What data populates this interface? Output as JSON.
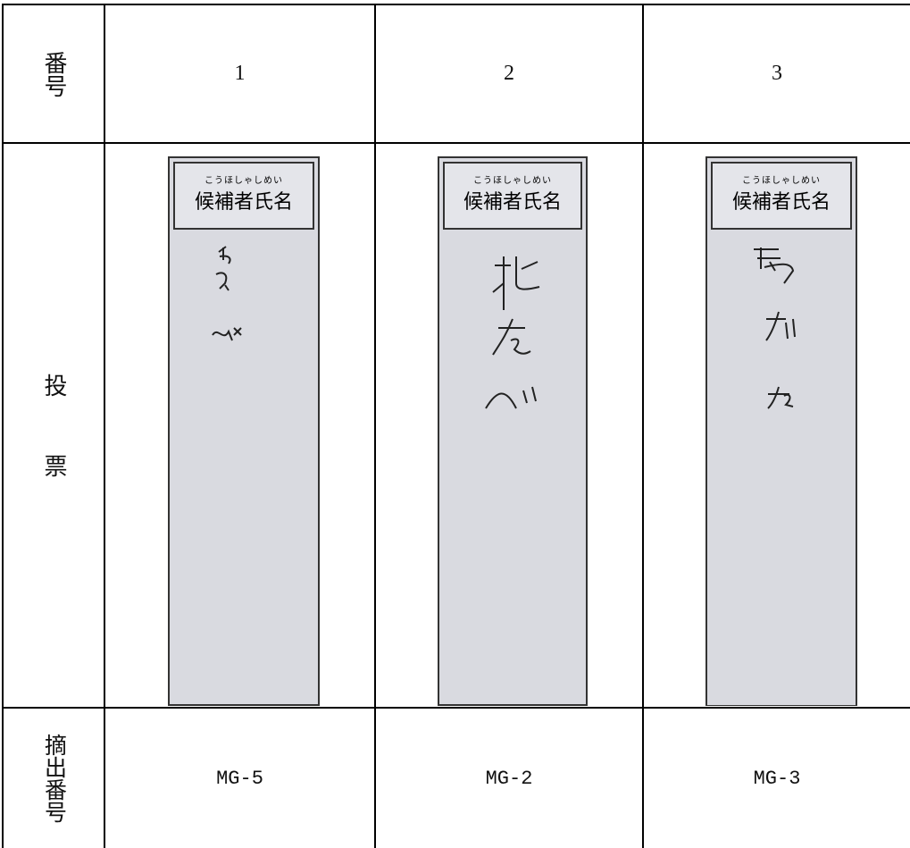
{
  "table": {
    "header": {
      "label": "番号",
      "numbers": [
        1,
        2,
        3
      ]
    },
    "ballot_row": {
      "label": "投票",
      "ballots": [
        {
          "furigana": "こうほしゃしめい",
          "heading": "候補者氏名"
        },
        {
          "furigana": "こうほしゃしめい",
          "heading": "候補者氏名"
        },
        {
          "furigana": "こうほしゃしめい",
          "heading": "候補者氏名"
        }
      ]
    },
    "extract_row": {
      "label": "摘出番号",
      "values": [
        "MG-5",
        "MG-2",
        "MG-3"
      ]
    }
  }
}
